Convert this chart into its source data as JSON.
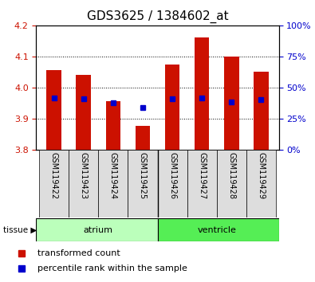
{
  "title": "GDS3625 / 1384602_at",
  "samples": [
    "GSM119422",
    "GSM119423",
    "GSM119424",
    "GSM119425",
    "GSM119426",
    "GSM119427",
    "GSM119428",
    "GSM119429"
  ],
  "bar_tops": [
    4.055,
    4.04,
    3.955,
    3.875,
    4.075,
    4.16,
    4.1,
    4.05
  ],
  "bar_bottom": 3.8,
  "blue_values": [
    3.965,
    3.963,
    3.95,
    3.935,
    3.963,
    3.965,
    3.952,
    3.962
  ],
  "ylim": [
    3.8,
    4.2
  ],
  "yticks_left": [
    3.8,
    3.9,
    4.0,
    4.1,
    4.2
  ],
  "yticks_right_labels": [
    "0%",
    "25%",
    "50%",
    "75%",
    "100%"
  ],
  "yticks_right_vals": [
    3.8,
    3.9,
    4.0,
    4.1,
    4.2
  ],
  "bar_color": "#cc1100",
  "blue_color": "#0000cc",
  "atrium_color": "#bbffbb",
  "ventricle_color": "#55ee55",
  "legend_red": "transformed count",
  "legend_blue": "percentile rank within the sample",
  "title_fontsize": 11,
  "tick_label_color_left": "#cc1100",
  "tick_label_color_right": "#0000cc",
  "bar_width": 0.5,
  "blue_size": 5,
  "grid_yticks": [
    3.9,
    4.0,
    4.1
  ]
}
